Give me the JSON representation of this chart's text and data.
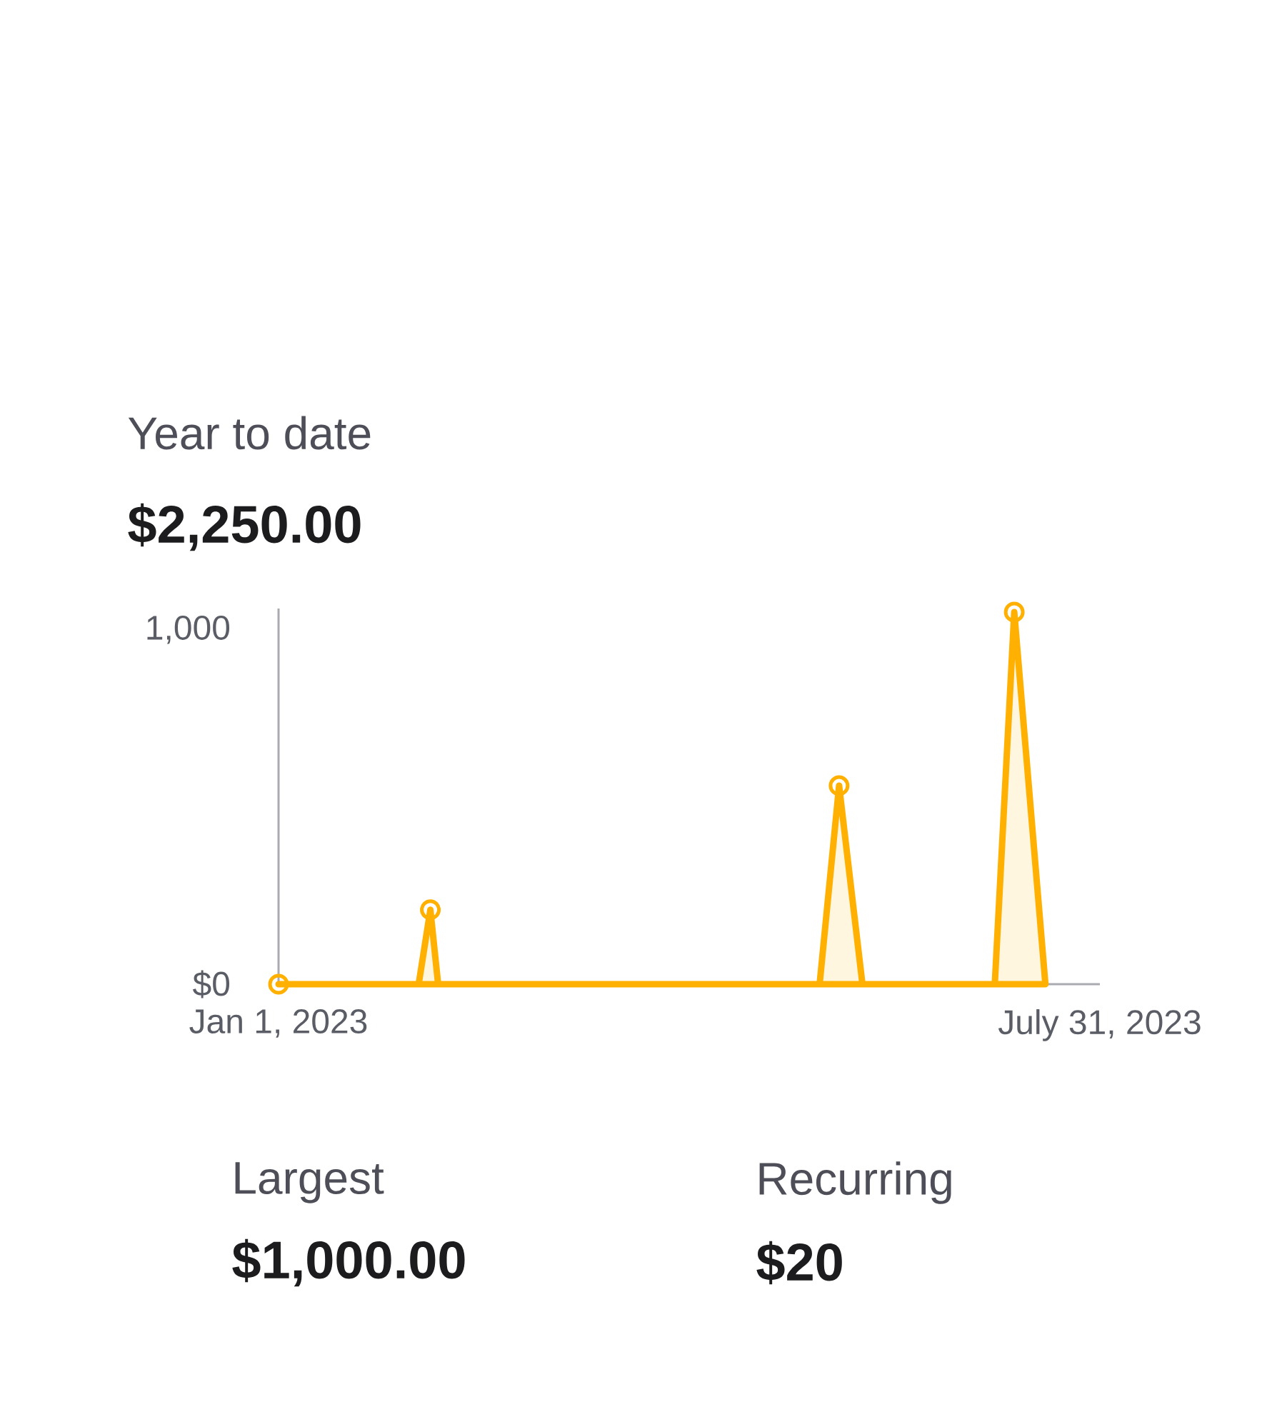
{
  "chart_data": {
    "type": "area",
    "title": "Year to date",
    "subtitle": "$2,250.00",
    "x": [
      "2023-01-01",
      "2023-02-06",
      "2023-02-09",
      "2023-02-11",
      "2023-05-20",
      "2023-05-25",
      "2023-05-31",
      "2023-07-04",
      "2023-07-09",
      "2023-07-17"
    ],
    "series": [
      {
        "color": "#ffb000",
        "values": [
          0,
          0,
          210,
          0,
          0,
          560,
          0,
          0,
          1050,
          0
        ]
      },
      {
        "type": "scatter",
        "color": "#ffb000",
        "marker": "circle",
        "x": [
          "2023-01-01",
          "2023-02-09",
          "2023-05-25",
          "2023-07-09"
        ],
        "values": [
          0,
          210,
          560,
          1050
        ]
      }
    ],
    "xlim": [
      "2023-01-01",
      "2023-07-31"
    ],
    "xticks": [
      {
        "value": "2023-01-01",
        "label": "Jan 1, 2023"
      },
      {
        "value": "2023-07-31",
        "label": "July 31, 2023"
      }
    ],
    "ylim": [
      0,
      1060
    ],
    "yticks": [
      {
        "value": 0,
        "label": "$0"
      },
      {
        "value": 1000,
        "label": "1,000"
      }
    ],
    "annotations": [
      "Largest",
      "$1,000.00",
      "Recurring",
      "$20"
    ]
  }
}
